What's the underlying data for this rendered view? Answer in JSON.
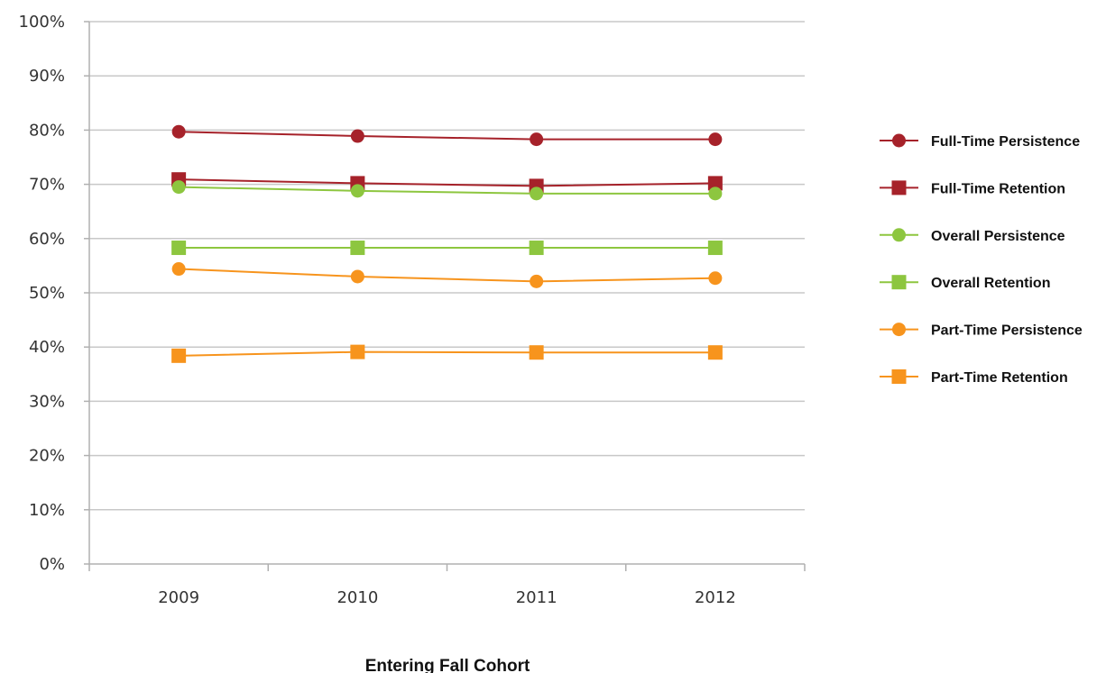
{
  "chart_data": {
    "type": "line",
    "title": "",
    "xlabel": "Entering Fall Cohort",
    "ylabel": "",
    "categories": [
      "2009",
      "2010",
      "2011",
      "2012"
    ],
    "ylim": [
      0,
      100
    ],
    "yticks": [
      "0%",
      "10%",
      "20%",
      "30%",
      "40%",
      "50%",
      "60%",
      "70%",
      "80%",
      "90%",
      "100%"
    ],
    "grid": true,
    "legend_position": "right",
    "series": [
      {
        "name": "Full-Time Persistence",
        "values": [
          79.7,
          78.9,
          78.3,
          78.3
        ],
        "marker": "circle",
        "color": "#A6222A"
      },
      {
        "name": "Full-Time Retention",
        "values": [
          70.9,
          70.2,
          69.7,
          70.2
        ],
        "marker": "square",
        "color": "#A6222A"
      },
      {
        "name": "Overall Persistence",
        "values": [
          69.5,
          68.8,
          68.3,
          68.3
        ],
        "marker": "circle",
        "color": "#8DC63F"
      },
      {
        "name": "Overall Retention",
        "values": [
          58.3,
          58.3,
          58.3,
          58.3
        ],
        "marker": "square",
        "color": "#8DC63F"
      },
      {
        "name": "Part-Time Persistence",
        "values": [
          54.4,
          53.0,
          52.1,
          52.7
        ],
        "marker": "circle",
        "color": "#F7941D"
      },
      {
        "name": "Part-Time Retention",
        "values": [
          38.4,
          39.1,
          39.0,
          39.0
        ],
        "marker": "square",
        "color": "#F7941D"
      }
    ]
  }
}
